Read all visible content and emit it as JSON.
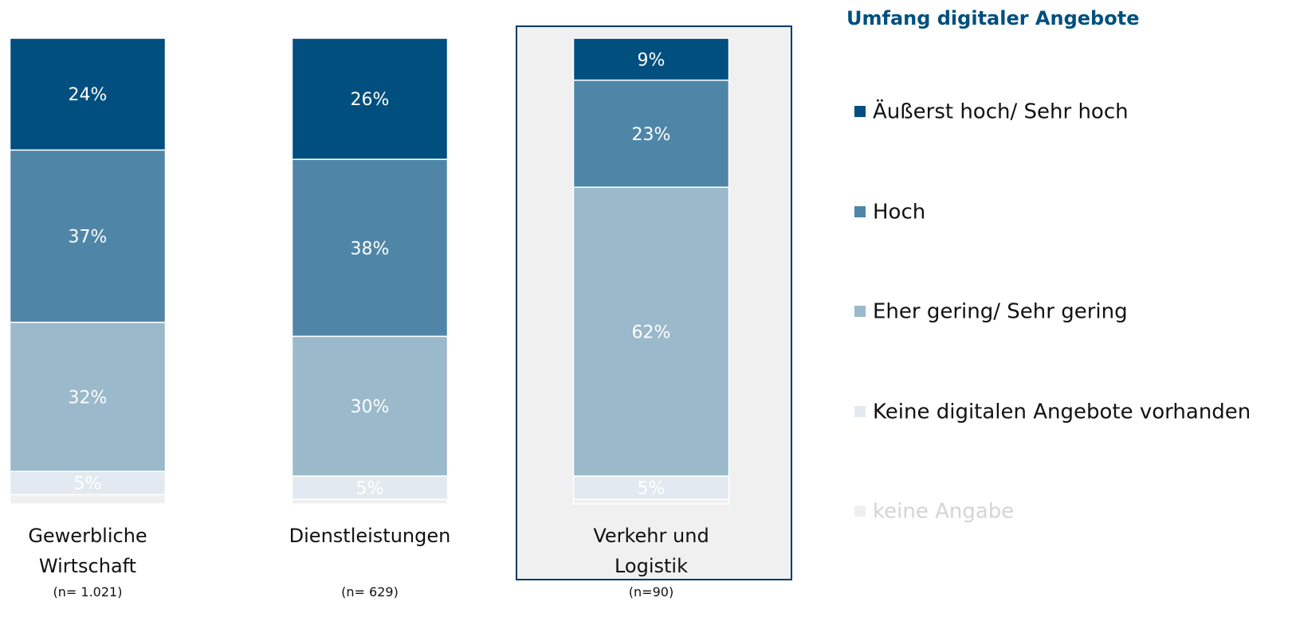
{
  "chart_data": {
    "type": "stacked_bar",
    "legend_title": "Umfang digitaler Angebote",
    "categories": [
      "Gewerbliche Wirtschaft",
      "Dienstleistungen",
      "Verkehr und Logistik"
    ],
    "sample_sizes": [
      "(n= 1.021)",
      "(n= 629)",
      "(n=90)"
    ],
    "highlight_category": 2,
    "ylim": [
      0,
      100
    ],
    "series": [
      {
        "name": "Äußerst hoch/ Sehr hoch",
        "color": "#004f7f",
        "values": [
          24,
          26,
          9
        ],
        "value_labels": [
          "24%",
          "26%",
          "9%"
        ]
      },
      {
        "name": "Hoch",
        "color": "#4f86a8",
        "values": [
          37,
          38,
          23
        ],
        "value_labels": [
          "37%",
          "38%",
          "23%"
        ]
      },
      {
        "name": "Eher gering/ Sehr gering",
        "color": "#9ab9cb",
        "values": [
          32,
          30,
          62
        ],
        "value_labels": [
          "32%",
          "30%",
          "62%"
        ]
      },
      {
        "name": "Keine digitalen Angebote vorhanden",
        "color": "#e3e9f0",
        "values": [
          5,
          5,
          5
        ],
        "value_labels": [
          "5%",
          "5%",
          "5%"
        ]
      },
      {
        "name": "keine Angabe",
        "color": "#efefef",
        "values": [
          2,
          1,
          1
        ],
        "value_labels": [
          null,
          null,
          null
        ]
      }
    ]
  }
}
